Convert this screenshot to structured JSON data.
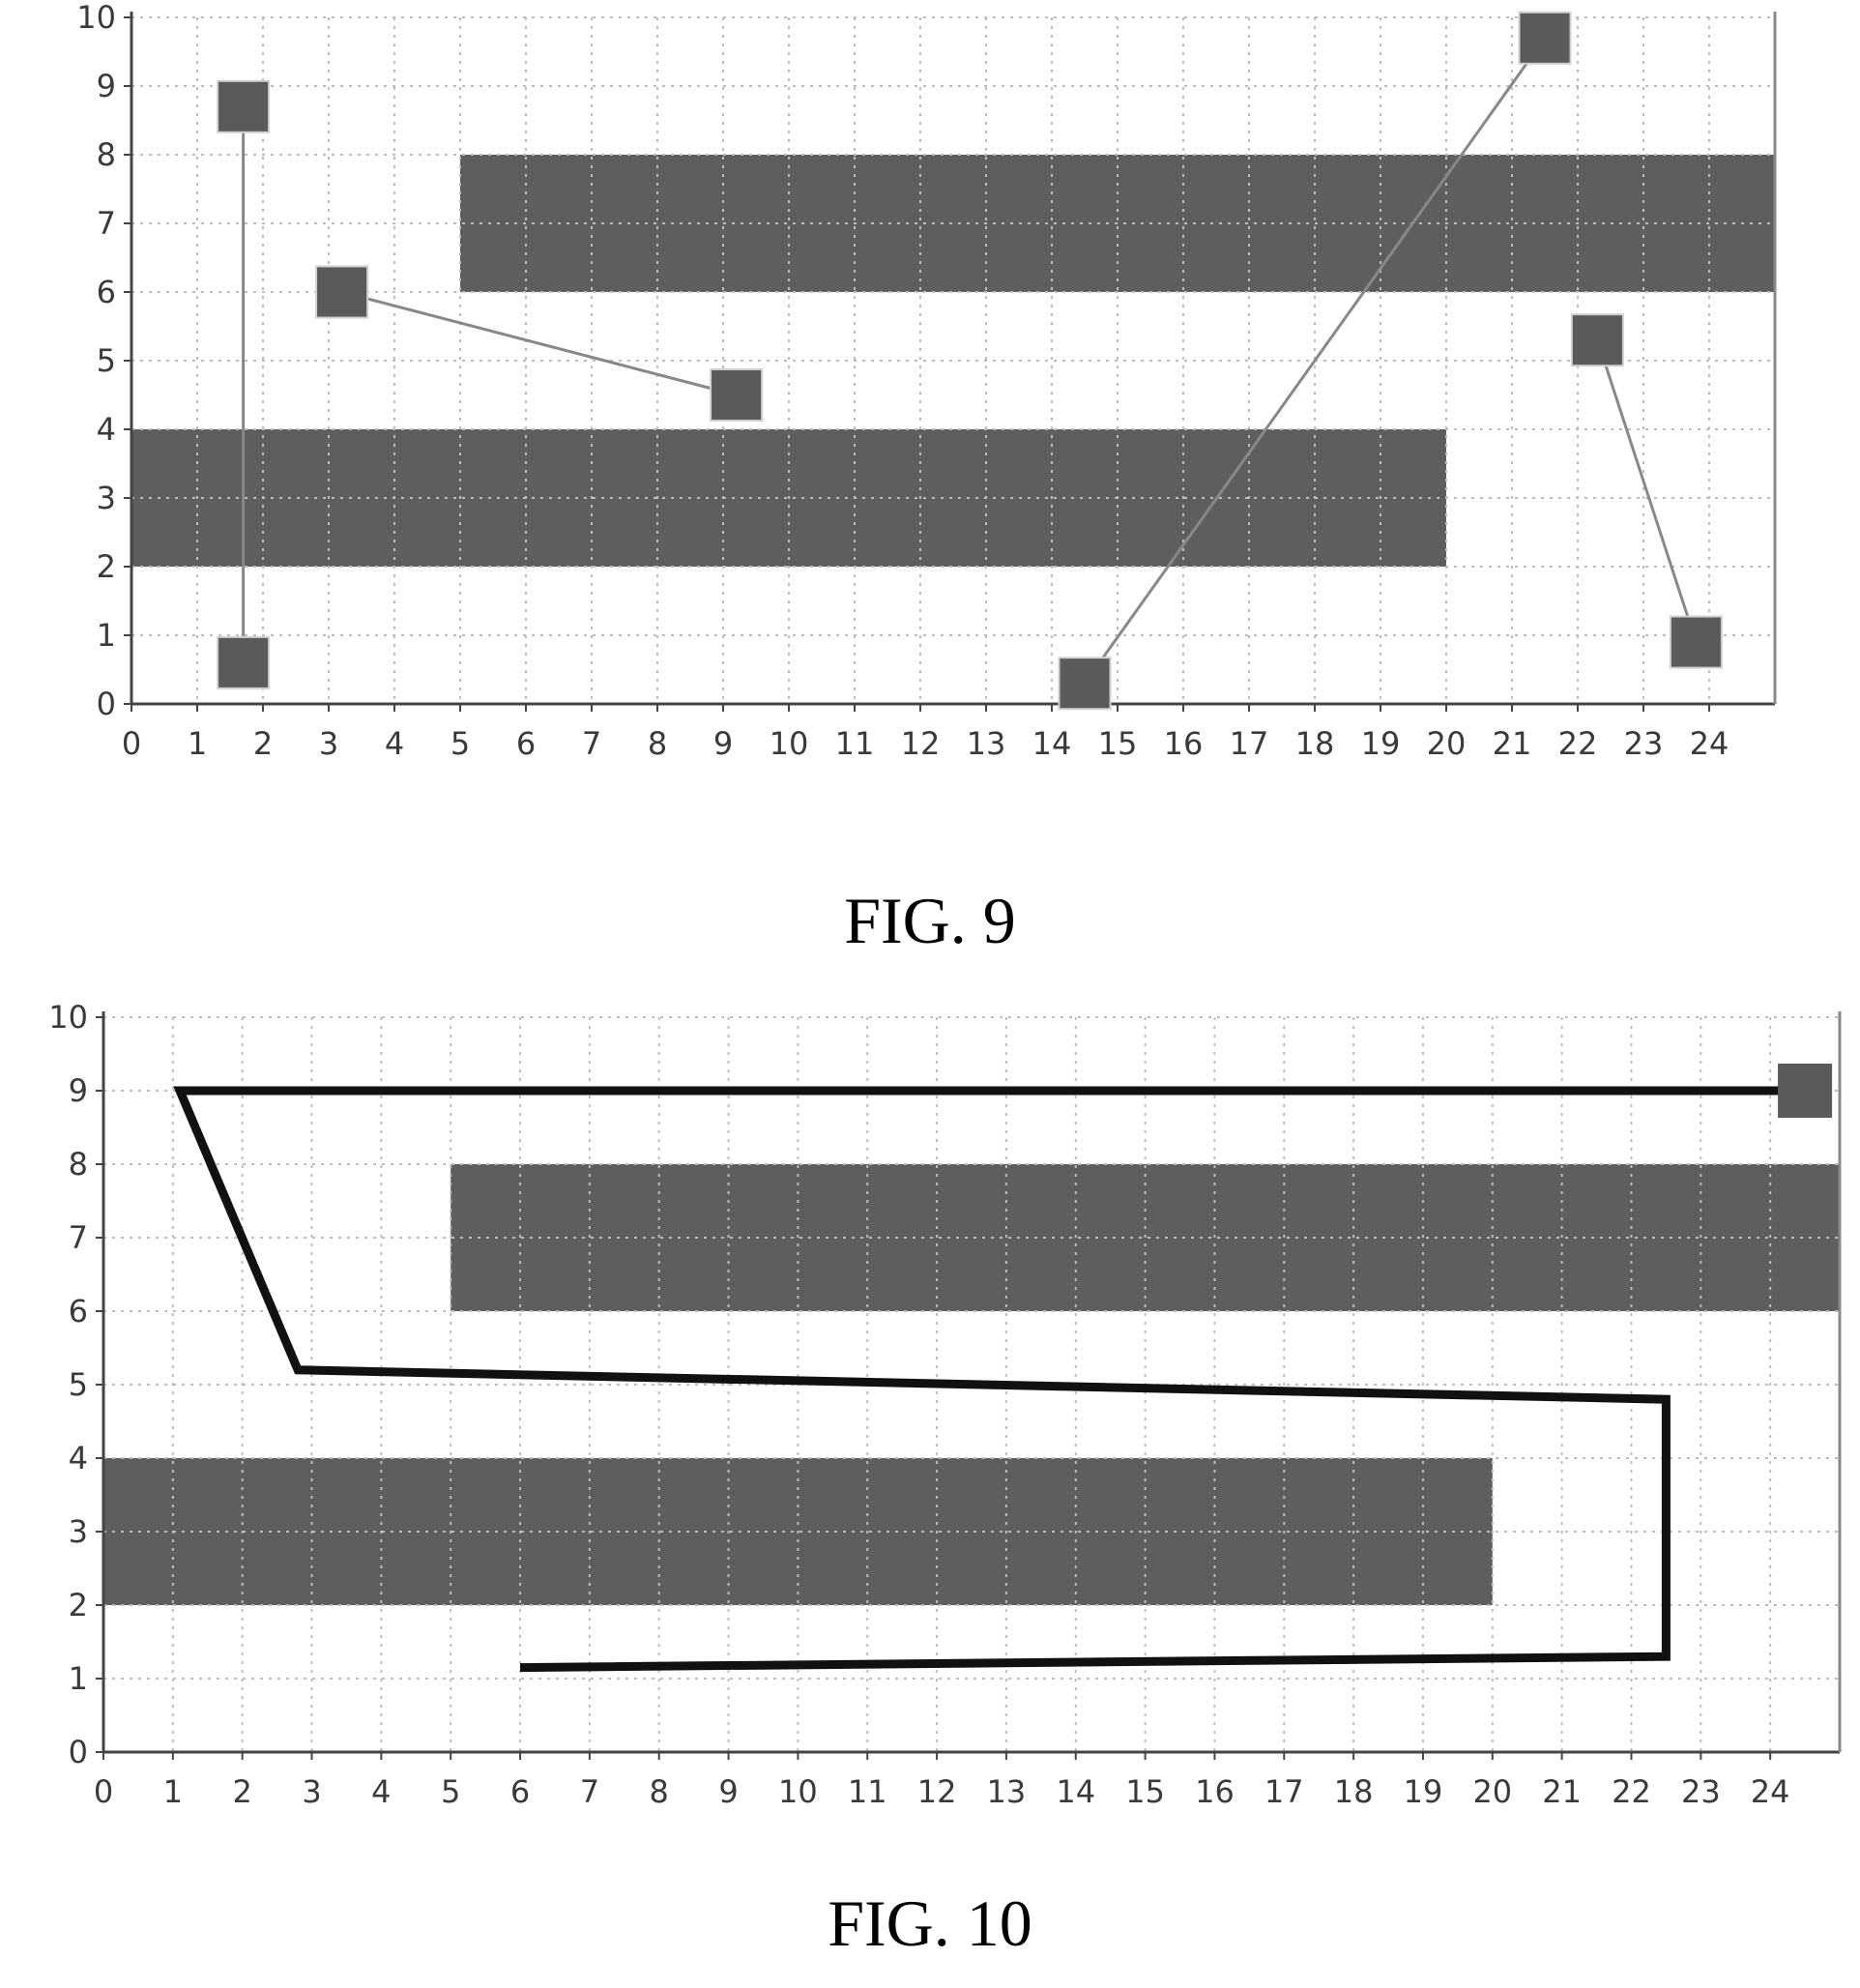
{
  "chart_data": [
    {
      "type": "scatter",
      "caption": "FIG. 9",
      "xlim": [
        0,
        25
      ],
      "ylim": [
        0,
        10
      ],
      "x_ticks": [
        "0",
        "1",
        "2",
        "3",
        "4",
        "5",
        "6",
        "7",
        "8",
        "9",
        "10",
        "11",
        "12",
        "13",
        "14",
        "15",
        "16",
        "17",
        "18",
        "19",
        "20",
        "21",
        "22",
        "23",
        "24"
      ],
      "y_ticks": [
        "0",
        "1",
        "2",
        "3",
        "4",
        "5",
        "6",
        "7",
        "8",
        "9",
        "10"
      ],
      "grid": true,
      "obstacles": [
        {
          "x0": 5,
          "x1": 25,
          "y0": 6,
          "y1": 8
        },
        {
          "x0": 0,
          "x1": 20,
          "y0": 2,
          "y1": 4
        }
      ],
      "connected_pairs": [
        {
          "from": [
            1.7,
            8.7
          ],
          "to": [
            1.7,
            0.6
          ]
        },
        {
          "from": [
            3.2,
            6.0
          ],
          "to": [
            9.2,
            4.5
          ]
        },
        {
          "from": [
            14.5,
            0.3
          ],
          "to": [
            21.5,
            9.7
          ]
        },
        {
          "from": [
            22.3,
            5.3
          ],
          "to": [
            23.8,
            0.9
          ]
        }
      ],
      "colors": {
        "obstacle": "#5e5e5e",
        "marker": "#5a5a5a",
        "line": "#888888",
        "grid": "#bdbdbd"
      }
    },
    {
      "type": "line",
      "caption": "FIG. 10",
      "xlim": [
        0,
        25
      ],
      "ylim": [
        0,
        10
      ],
      "x_ticks": [
        "0",
        "1",
        "2",
        "3",
        "4",
        "5",
        "6",
        "7",
        "8",
        "9",
        "10",
        "11",
        "12",
        "13",
        "14",
        "15",
        "16",
        "17",
        "18",
        "19",
        "20",
        "21",
        "22",
        "23",
        "24"
      ],
      "y_ticks": [
        "0",
        "1",
        "2",
        "3",
        "4",
        "5",
        "6",
        "7",
        "8",
        "9",
        "10"
      ],
      "grid": true,
      "obstacles": [
        {
          "x0": 5,
          "x1": 25,
          "y0": 6,
          "y1": 8
        },
        {
          "x0": 0,
          "x1": 20,
          "y0": 2,
          "y1": 4
        }
      ],
      "markers": [
        [
          24.5,
          9.0
        ]
      ],
      "path": [
        [
          6,
          1.15
        ],
        [
          22.5,
          1.3
        ],
        [
          22.5,
          4.8
        ],
        [
          2.8,
          5.2
        ],
        [
          1.1,
          9.0
        ],
        [
          24.5,
          9.0
        ]
      ],
      "colors": {
        "obstacle": "#5e5e5e",
        "marker": "#5a5a5a",
        "line": "#111111",
        "grid": "#bdbdbd"
      }
    }
  ]
}
